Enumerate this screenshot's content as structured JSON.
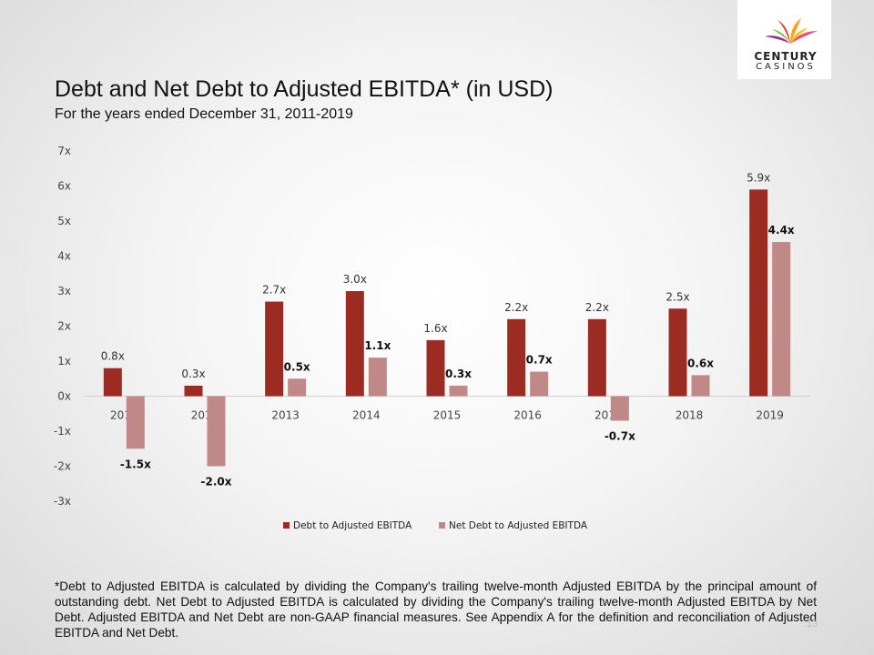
{
  "logo": {
    "line1": "CENTURY",
    "line2": "CASINOS"
  },
  "title": "Debt and Net Debt to Adjusted EBITDA* (in USD)",
  "subtitle": "For the years ended December 31, 2011-2019",
  "footnote": "*Debt to Adjusted EBITDA is calculated by dividing the Company's trailing twelve-month Adjusted EBITDA by the principal amount of outstanding debt. Net Debt to Adjusted EBITDA is calculated by dividing the Company's trailing twelve-month Adjusted EBITDA by Net Debt. Adjusted EBITDA and Net Debt are non-GAAP financial measures. See Appendix A for the definition and reconciliation of Adjusted EBITDA and Net Debt.",
  "page_number": "13",
  "colors": {
    "debt": "#9c2b22",
    "net_debt": "#c08886",
    "axis": "#d0d0d0",
    "text": "#444444"
  },
  "chart_data": {
    "type": "bar",
    "categories": [
      "2011",
      "2012",
      "2013",
      "2014",
      "2015",
      "2016",
      "2017",
      "2018",
      "2019"
    ],
    "series": [
      {
        "name": "Debt to Adjusted EBITDA",
        "values": [
          0.8,
          0.3,
          2.7,
          3.0,
          1.6,
          2.2,
          2.2,
          2.5,
          5.9
        ],
        "labels": [
          "0.8x",
          "0.3x",
          "2.7x",
          "3.0x",
          "1.6x",
          "2.2x",
          "2.2x",
          "2.5x",
          "5.9x"
        ]
      },
      {
        "name": "Net Debt to Adjusted EBITDA",
        "values": [
          -1.5,
          -2.0,
          0.5,
          1.1,
          0.3,
          0.7,
          -0.7,
          0.6,
          4.4
        ],
        "labels": [
          "-1.5x",
          "-2.0x",
          "0.5x",
          "1.1x",
          "0.3x",
          "0.7x",
          "-0.7x",
          "0.6x",
          "4.4x"
        ]
      }
    ],
    "yticks": [
      "-3x",
      "-2x",
      "-1x",
      "0x",
      "1x",
      "2x",
      "3x",
      "4x",
      "5x",
      "6x",
      "7x"
    ],
    "ylim": [
      -3,
      7
    ],
    "grid": false,
    "legend": "bottom"
  }
}
